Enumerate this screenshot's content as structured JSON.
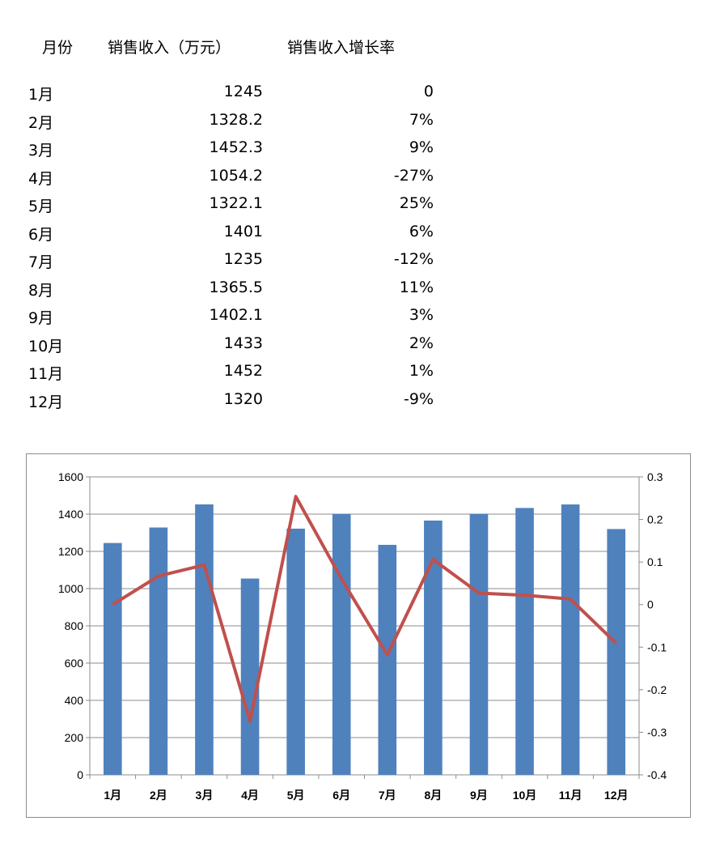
{
  "table": {
    "headers": [
      "月份",
      "销售收入（万元）",
      "销售收入增长率"
    ],
    "rows": [
      [
        "1月",
        "1245",
        "0"
      ],
      [
        "2月",
        "1328.2",
        "7%"
      ],
      [
        "3月",
        "1452.3",
        "9%"
      ],
      [
        "4月",
        "1054.2",
        "-27%"
      ],
      [
        "5月",
        "1322.1",
        "25%"
      ],
      [
        "6月",
        "1401",
        "6%"
      ],
      [
        "7月",
        "1235",
        "-12%"
      ],
      [
        "8月",
        "1365.5",
        "11%"
      ],
      [
        "9月",
        "1402.1",
        "3%"
      ],
      [
        "10月",
        "1433",
        "2%"
      ],
      [
        "11月",
        "1452",
        "1%"
      ],
      [
        "12月",
        "1320",
        "-9%"
      ]
    ]
  },
  "chart_data": {
    "type": "bar",
    "categories": [
      "1月",
      "2月",
      "3月",
      "4月",
      "5月",
      "6月",
      "7月",
      "8月",
      "9月",
      "10月",
      "11月",
      "12月"
    ],
    "series": [
      {
        "name": "销售收入（万元）",
        "type": "bar",
        "axis": "left",
        "color": "#4f81bd",
        "values": [
          1245,
          1328.2,
          1452.3,
          1054.2,
          1322.1,
          1401,
          1235,
          1365.5,
          1402.1,
          1433,
          1452,
          1320
        ]
      },
      {
        "name": "销售收入增长率",
        "type": "line",
        "axis": "right",
        "color": "#c0504d",
        "values": [
          0,
          0.067,
          0.093,
          -0.274,
          0.254,
          0.06,
          -0.118,
          0.106,
          0.027,
          0.022,
          0.013,
          -0.091
        ]
      }
    ],
    "ylim": [
      0,
      1600
    ],
    "yticks": [
      "0",
      "200",
      "400",
      "600",
      "800",
      "1000",
      "1200",
      "1400",
      "1600"
    ],
    "y2lim": [
      -0.4,
      0.3
    ],
    "y2ticks": [
      "-0.4",
      "-0.3",
      "-0.2",
      "-0.1",
      "0",
      "0.1",
      "0.2",
      "0.3"
    ],
    "grid": true,
    "legend": "none"
  }
}
